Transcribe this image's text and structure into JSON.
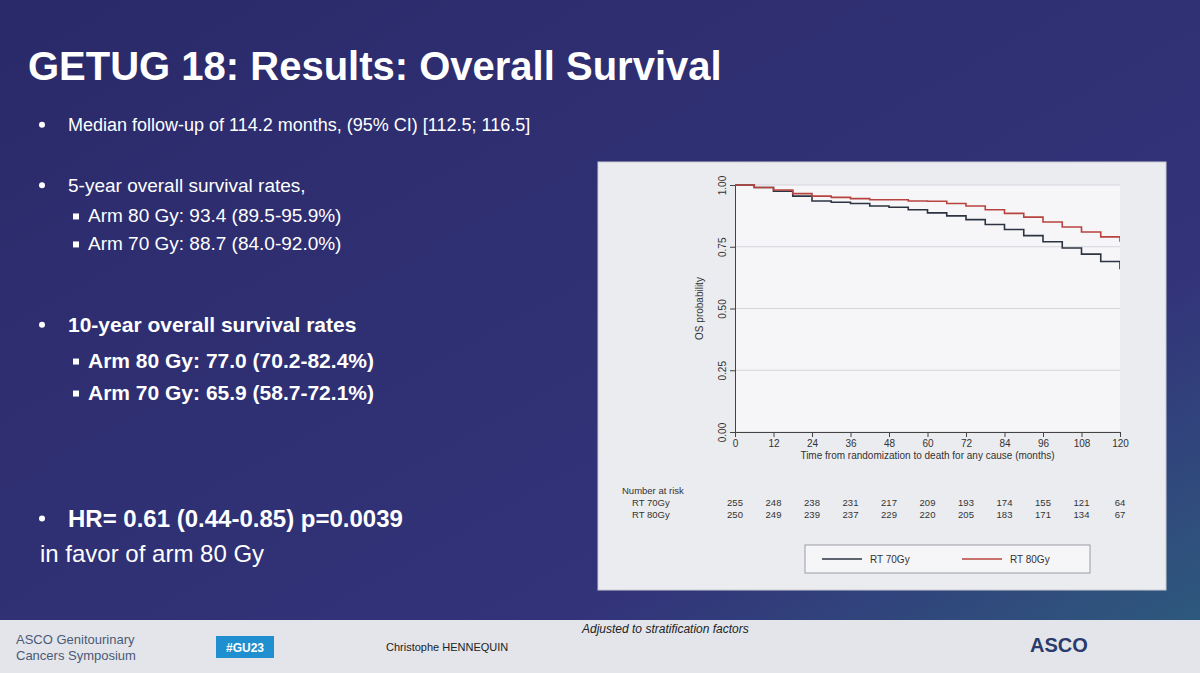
{
  "slide": {
    "title": "GETUG 18: Results: Overall Survival",
    "bullets": [
      {
        "text": "Median follow-up of 114.2 months, (95% CI) [112.5; 116.5]",
        "sub": []
      },
      {
        "text": "5-year overall survival rates,",
        "sub": [
          "Arm 80 Gy: 93.4 (89.5-95.9%)",
          "Arm 70 Gy: 88.7 (84.0-92.0%)"
        ]
      },
      {
        "text": "10-year overall survival rates",
        "sub": [
          "Arm 80 Gy: 77.0 (70.2-82.4%)",
          "Arm 70 Gy: 65.9 (58.7-72.1%)"
        ]
      },
      {
        "text": "HR= 0.61 (0.44-0.85) p=0.0039",
        "sub": [],
        "continuation": "in favor of arm 80 Gy"
      }
    ],
    "footer": {
      "left_line1": "ASCO Genitourinary",
      "left_line2": "Cancers Symposium",
      "hashtag": "#GU23",
      "presenter": "Christophe HENNEQUIN",
      "note": "Adjusted to stratification factors",
      "right": "ASCO"
    }
  },
  "chart_data": {
    "type": "line",
    "line_style": "step",
    "xlabel": "Time from randomization to death for any cause (months)",
    "ylabel": "OS probability",
    "x": [
      0,
      6,
      12,
      18,
      24,
      30,
      36,
      42,
      48,
      54,
      60,
      66,
      72,
      78,
      84,
      90,
      96,
      102,
      108,
      114,
      120
    ],
    "series": [
      {
        "name": "RT 70Gy",
        "color": "#2b3440",
        "values": [
          1.0,
          0.99,
          0.975,
          0.955,
          0.935,
          0.93,
          0.925,
          0.915,
          0.91,
          0.9,
          0.887,
          0.875,
          0.86,
          0.84,
          0.82,
          0.795,
          0.77,
          0.745,
          0.72,
          0.69,
          0.659
        ],
        "at_risk": [
          255,
          248,
          238,
          231,
          217,
          209,
          193,
          174,
          155,
          121,
          64
        ]
      },
      {
        "name": "RT 80Gy",
        "color": "#b8433e",
        "values": [
          1.0,
          0.99,
          0.98,
          0.965,
          0.955,
          0.95,
          0.945,
          0.94,
          0.94,
          0.935,
          0.934,
          0.925,
          0.915,
          0.9,
          0.885,
          0.87,
          0.85,
          0.83,
          0.81,
          0.79,
          0.77
        ],
        "at_risk": [
          250,
          249,
          239,
          237,
          229,
          220,
          205,
          183,
          171,
          134,
          67
        ]
      }
    ],
    "at_risk_label": "Number at risk",
    "xlim": [
      0,
      120
    ],
    "xticks": [
      0,
      12,
      24,
      36,
      48,
      60,
      72,
      84,
      96,
      108,
      120
    ],
    "ylim": [
      0,
      1
    ],
    "yticks": [
      {
        "value": 0,
        "label": "0.00"
      },
      {
        "value": 0.25,
        "label": "0.25"
      },
      {
        "value": 0.5,
        "label": "0.50"
      },
      {
        "value": 0.75,
        "label": "0.75"
      },
      {
        "value": 1,
        "label": "1.00"
      }
    ],
    "grid": true,
    "legend": "bottom"
  }
}
